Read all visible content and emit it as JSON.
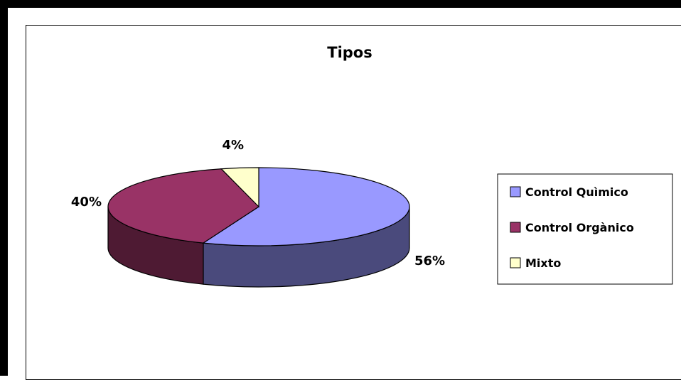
{
  "chart_data": {
    "type": "pie",
    "title": "Tipos",
    "three_d": true,
    "legend_position": "right",
    "slices": [
      {
        "label": "Control Quìmico",
        "value": 56,
        "data_label": "56%",
        "color": "#9999ff",
        "side_color": "#4a4a7c"
      },
      {
        "label": "Control Orgànico",
        "value": 40,
        "data_label": "40%",
        "color": "#993366",
        "side_color": "#4e1a33"
      },
      {
        "label": "Mixto",
        "value": 4,
        "data_label": "4%",
        "color": "#ffffcc",
        "side_color": "#b0b08a"
      }
    ]
  }
}
